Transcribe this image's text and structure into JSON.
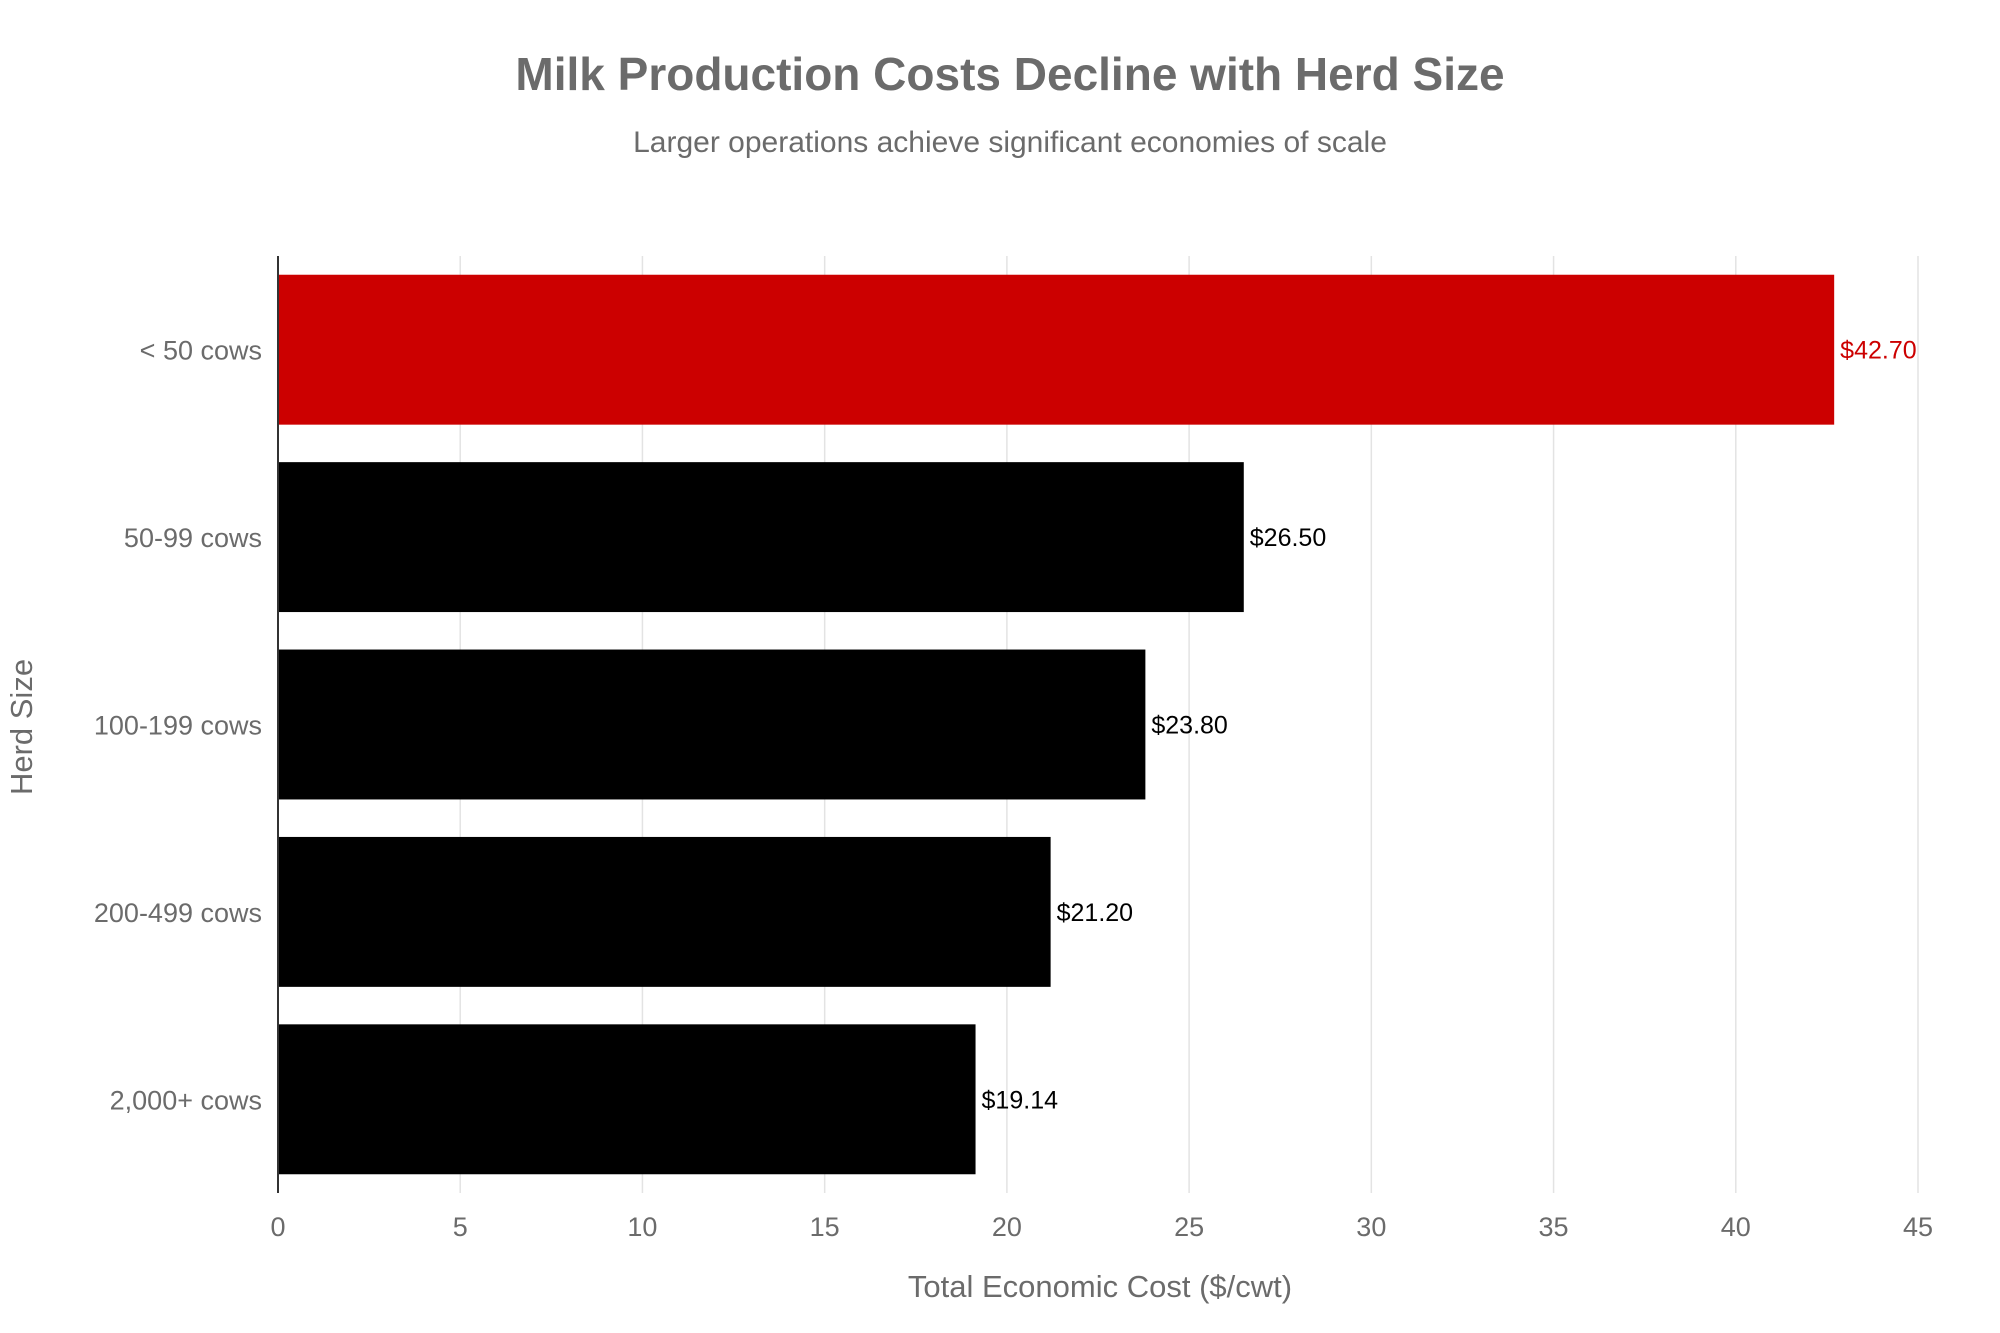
{
  "chart_data": {
    "type": "bar",
    "orientation": "horizontal",
    "title": "Milk Production Costs Decline with Herd Size",
    "subtitle": "Larger operations achieve significant economies of scale",
    "xlabel": "Total Economic Cost ($/cwt)",
    "ylabel": "Herd Size",
    "xlim": [
      0,
      45
    ],
    "xticks": [
      "0",
      "5",
      "10",
      "15",
      "20",
      "25",
      "30",
      "35",
      "40",
      "45"
    ],
    "grid": true,
    "categories": [
      "< 50 cows",
      "50-99 cows",
      "100-199 cows",
      "200-499 cows",
      "2,000+ cows"
    ],
    "values": [
      42.7,
      26.5,
      23.8,
      21.2,
      19.14
    ],
    "value_labels": [
      "$42.70",
      "$26.50",
      "$23.80",
      "$21.20",
      "$19.14"
    ],
    "highlight_index": 0,
    "colors": {
      "highlight": "#cc0000",
      "default": "#000000",
      "highlight_label": "#cc0000",
      "default_label": "#000000",
      "grid": "#e3e3e3",
      "axis": "#333333"
    }
  }
}
